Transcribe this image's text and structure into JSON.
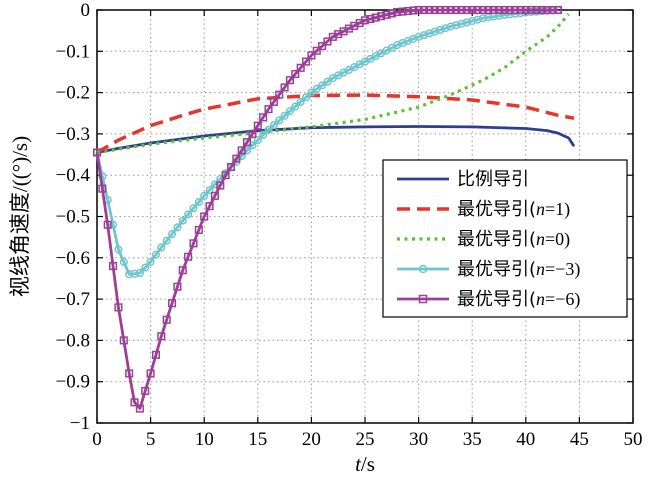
{
  "chart_data": {
    "type": "line",
    "title": "",
    "xlabel_var": "t",
    "xlabel_unit": "/s",
    "ylabel": "视线角速度/((°)/s)",
    "xlim": [
      0,
      50
    ],
    "ylim": [
      -1,
      0
    ],
    "xticks": [
      0,
      5,
      10,
      15,
      20,
      25,
      30,
      35,
      40,
      45,
      50
    ],
    "yticks": [
      0,
      -0.1,
      -0.2,
      -0.3,
      -0.4,
      -0.5,
      -0.6,
      -0.7,
      -0.8,
      -0.9,
      -1
    ],
    "ytick_labels": [
      "0",
      "−0.1",
      "−0.2",
      "−0.3",
      "−0.4",
      "−0.5",
      "−0.6",
      "−0.7",
      "−0.8",
      "−0.9",
      "−1"
    ],
    "grid": true,
    "grid_style": "dotted",
    "legend_position": "right",
    "series": [
      {
        "name": "比例导引",
        "legend_prefix": "比例导引",
        "legend_var": "",
        "legend_value": "",
        "color": "#2e3d8f",
        "style": "solid",
        "marker": "none",
        "x": [
          0,
          2,
          5,
          10,
          15,
          20,
          25,
          30,
          35,
          40,
          42,
          43,
          44,
          44.5
        ],
        "y": [
          -0.345,
          -0.335,
          -0.322,
          -0.305,
          -0.292,
          -0.285,
          -0.283,
          -0.282,
          -0.283,
          -0.287,
          -0.292,
          -0.298,
          -0.31,
          -0.33
        ]
      },
      {
        "name": "最优导引(n=1)",
        "legend_prefix": "最优导引(",
        "legend_var": "n",
        "legend_value": "=1)",
        "color": "#e8342a",
        "style": "dashed",
        "marker": "none",
        "x": [
          0,
          2,
          5,
          8,
          10,
          15,
          20,
          25,
          30,
          35,
          40,
          43,
          44.5
        ],
        "y": [
          -0.345,
          -0.315,
          -0.28,
          -0.255,
          -0.24,
          -0.215,
          -0.207,
          -0.206,
          -0.21,
          -0.218,
          -0.235,
          -0.255,
          -0.262
        ]
      },
      {
        "name": "最优导引(n=0)",
        "legend_prefix": "最优导引(",
        "legend_var": "n",
        "legend_value": "=0)",
        "color": "#5cbf3a",
        "style": "dotted",
        "marker": "none",
        "x": [
          0,
          5,
          10,
          15,
          20,
          25,
          30,
          33,
          36,
          38,
          40,
          42,
          43,
          44
        ],
        "y": [
          -0.345,
          -0.325,
          -0.31,
          -0.297,
          -0.283,
          -0.265,
          -0.235,
          -0.205,
          -0.17,
          -0.14,
          -0.1,
          -0.065,
          -0.04,
          -0.01
        ]
      },
      {
        "name": "最优导引(n=−3)",
        "legend_prefix": "最优导引(",
        "legend_var": "n",
        "legend_value": "=−3)",
        "color": "#6ec6cc",
        "style": "solid",
        "marker": "circle",
        "x": [
          0,
          1,
          2,
          3,
          4,
          5,
          6,
          8,
          10,
          12,
          14,
          16,
          18,
          20,
          22,
          25,
          28,
          30,
          33,
          36,
          38,
          40,
          42,
          43
        ],
        "y": [
          -0.345,
          -0.46,
          -0.58,
          -0.64,
          -0.637,
          -0.61,
          -0.575,
          -0.51,
          -0.45,
          -0.395,
          -0.34,
          -0.29,
          -0.245,
          -0.2,
          -0.165,
          -0.125,
          -0.085,
          -0.065,
          -0.04,
          -0.02,
          -0.012,
          -0.006,
          -0.002,
          0
        ]
      },
      {
        "name": "最优导引(n=−6)",
        "legend_prefix": "最优导引(",
        "legend_var": "n",
        "legend_value": "=−6)",
        "color": "#9c3f98",
        "style": "solid",
        "marker": "square",
        "x": [
          0,
          1,
          2,
          3,
          3.5,
          4,
          5,
          6,
          8,
          10,
          12,
          14,
          16,
          18,
          20,
          22,
          25,
          28,
          30,
          32,
          35,
          38,
          40,
          42,
          43
        ],
        "y": [
          -0.345,
          -0.52,
          -0.72,
          -0.88,
          -0.95,
          -0.965,
          -0.88,
          -0.79,
          -0.63,
          -0.5,
          -0.4,
          -0.32,
          -0.24,
          -0.17,
          -0.11,
          -0.065,
          -0.025,
          -0.005,
          0,
          0,
          0,
          0,
          0,
          0,
          0
        ]
      }
    ]
  }
}
